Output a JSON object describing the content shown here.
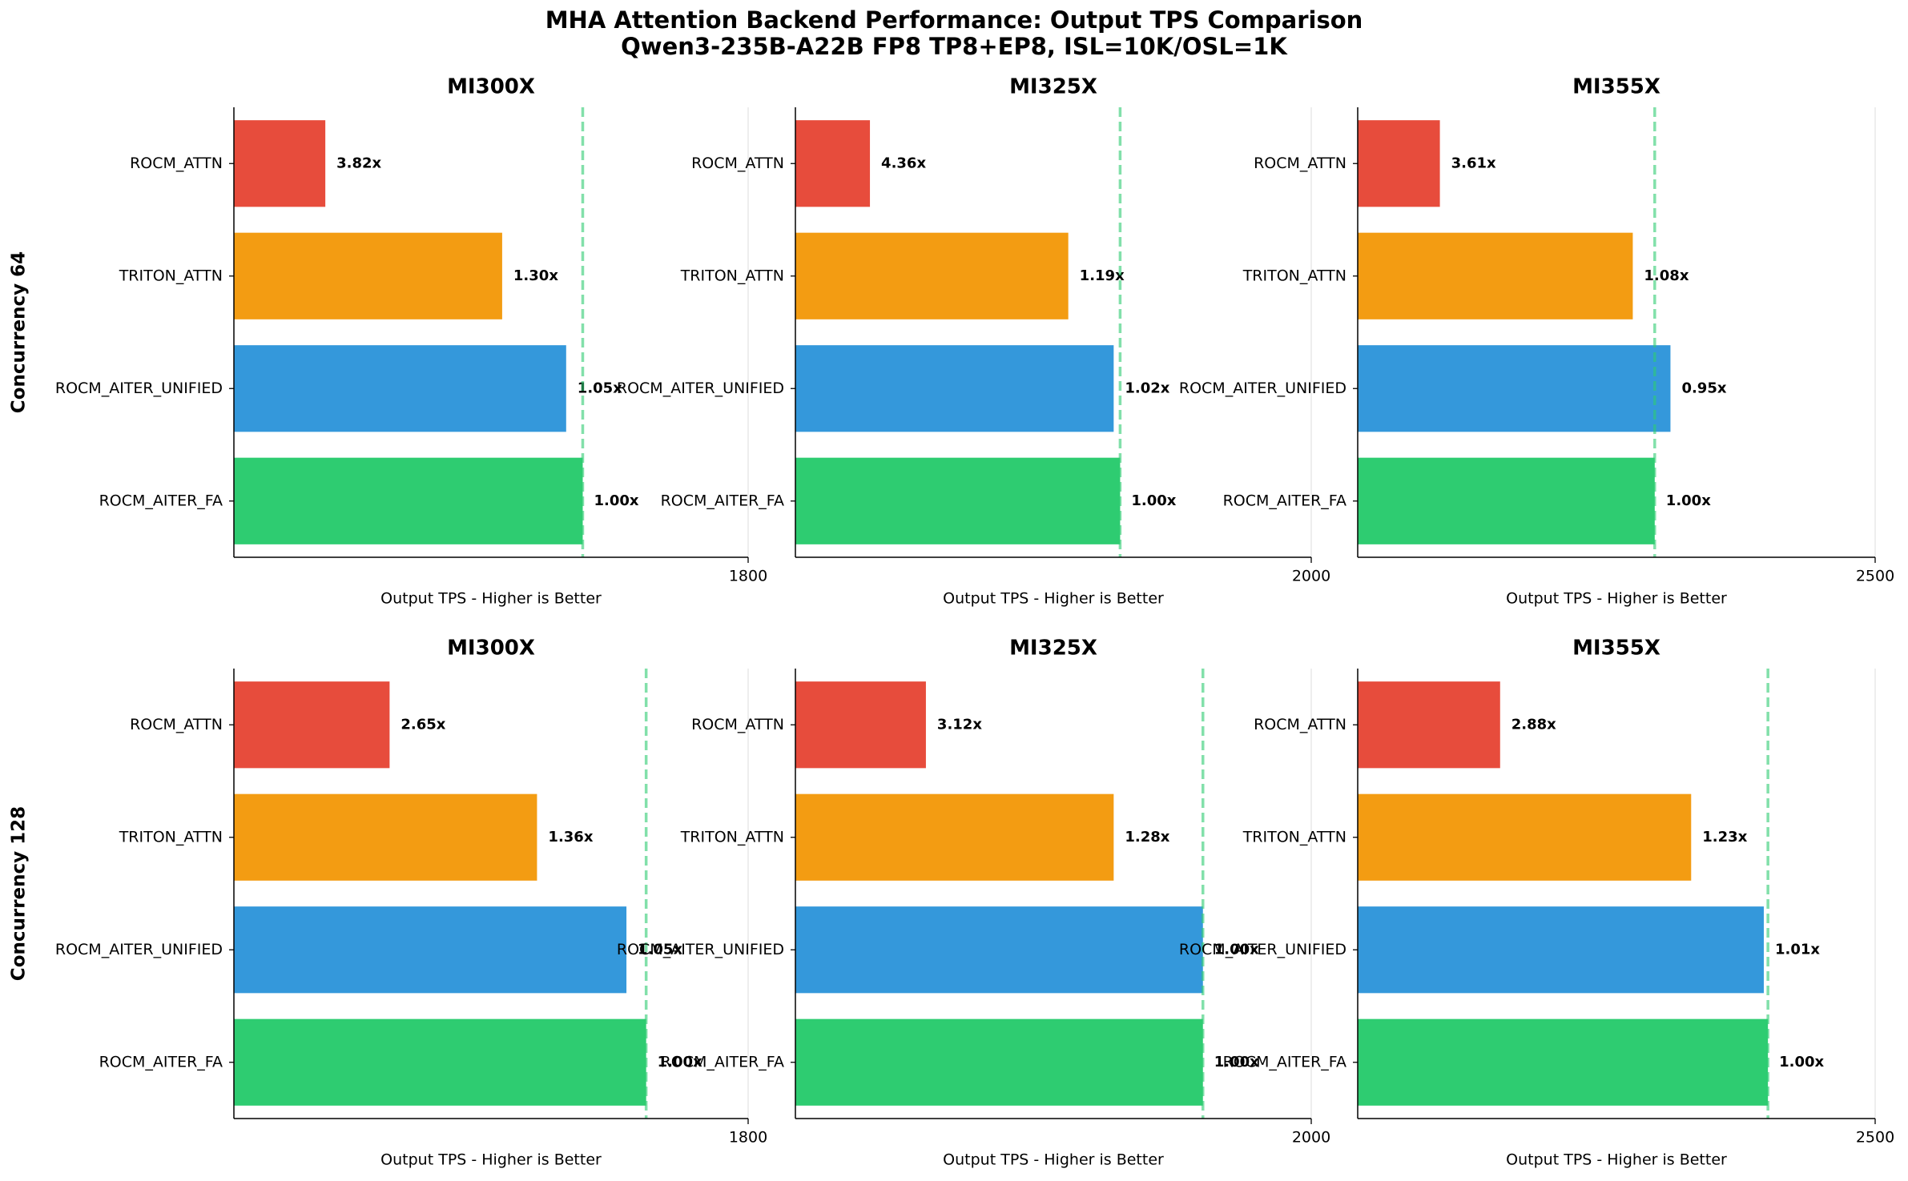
{
  "title": "MHA Attention Backend Performance: Output TPS Comparison",
  "subtitle": "Qwen3-235B-A22B FP8 TP8+EP8, ISL=10K/OSL=1K",
  "chart_data": [
    {
      "type": "bar",
      "horizontal": true,
      "title": "MI300X",
      "ylabel": "Concurrency 64",
      "xlabel": "Output TPS - Higher is Better",
      "categories": [
        "ROCM_ATTN",
        "TRITON_ATTN",
        "ROCM_AITER_UNIFIED",
        "ROCM_AITER_FA"
      ],
      "values": [
        320,
        939,
        1163,
        1221
      ],
      "annotations": [
        "3.82x",
        "1.30x",
        "1.05x",
        "1.00x"
      ],
      "colors": [
        "#e74c3c",
        "#f39c12",
        "#3498db",
        "#2ecc71"
      ],
      "reference_color": "#2ecc71",
      "xlim": [
        0,
        1800
      ],
      "xticks": [
        1800
      ],
      "grid": true
    },
    {
      "type": "bar",
      "horizontal": true,
      "title": "MI325X",
      "xlabel": "Output TPS - Higher is Better",
      "categories": [
        "ROCM_ATTN",
        "TRITON_ATTN",
        "ROCM_AITER_UNIFIED",
        "ROCM_AITER_FA"
      ],
      "values": [
        289,
        1058,
        1234,
        1259
      ],
      "annotations": [
        "4.36x",
        "1.19x",
        "1.02x",
        "1.00x"
      ],
      "colors": [
        "#e74c3c",
        "#f39c12",
        "#3498db",
        "#2ecc71"
      ],
      "reference_color": "#2ecc71",
      "xlim": [
        0,
        2000
      ],
      "xticks": [
        2000
      ],
      "grid": true
    },
    {
      "type": "bar",
      "horizontal": true,
      "title": "MI355X",
      "xlabel": "Output TPS - Higher is Better",
      "categories": [
        "ROCM_ATTN",
        "TRITON_ATTN",
        "ROCM_AITER_UNIFIED",
        "ROCM_AITER_FA"
      ],
      "values": [
        397,
        1329,
        1511,
        1435
      ],
      "annotations": [
        "3.61x",
        "1.08x",
        "0.95x",
        "1.00x"
      ],
      "colors": [
        "#e74c3c",
        "#f39c12",
        "#3498db",
        "#2ecc71"
      ],
      "reference_color": "#2ecc71",
      "xlim": [
        0,
        2500
      ],
      "xticks": [
        2500
      ],
      "grid": true
    },
    {
      "type": "bar",
      "horizontal": true,
      "title": "MI300X",
      "ylabel": "Concurrency 128",
      "xlabel": "Output TPS - Higher is Better",
      "categories": [
        "ROCM_ATTN",
        "TRITON_ATTN",
        "ROCM_AITER_UNIFIED",
        "ROCM_AITER_FA"
      ],
      "values": [
        545,
        1061,
        1374,
        1443
      ],
      "annotations": [
        "2.65x",
        "1.36x",
        "1.05x",
        "1.00x"
      ],
      "colors": [
        "#e74c3c",
        "#f39c12",
        "#3498db",
        "#2ecc71"
      ],
      "reference_color": "#2ecc71",
      "xlim": [
        0,
        1800
      ],
      "xticks": [
        1800
      ],
      "grid": true
    },
    {
      "type": "bar",
      "horizontal": true,
      "title": "MI325X",
      "xlabel": "Output TPS - Higher is Better",
      "categories": [
        "ROCM_ATTN",
        "TRITON_ATTN",
        "ROCM_AITER_UNIFIED",
        "ROCM_AITER_FA"
      ],
      "values": [
        506,
        1234,
        1580,
        1580
      ],
      "annotations": [
        "3.12x",
        "1.28x",
        "1.00x",
        "1.00x"
      ],
      "colors": [
        "#e74c3c",
        "#f39c12",
        "#3498db",
        "#2ecc71"
      ],
      "reference_color": "#2ecc71",
      "xlim": [
        0,
        2000
      ],
      "xticks": [
        2000
      ],
      "grid": true
    },
    {
      "type": "bar",
      "horizontal": true,
      "title": "MI355X",
      "xlabel": "Output TPS - Higher is Better",
      "categories": [
        "ROCM_ATTN",
        "TRITON_ATTN",
        "ROCM_AITER_UNIFIED",
        "ROCM_AITER_FA"
      ],
      "values": [
        688,
        1611,
        1962,
        1982
      ],
      "annotations": [
        "2.88x",
        "1.23x",
        "1.01x",
        "1.00x"
      ],
      "colors": [
        "#e74c3c",
        "#f39c12",
        "#3498db",
        "#2ecc71"
      ],
      "reference_color": "#2ecc71",
      "xlim": [
        0,
        2500
      ],
      "xticks": [
        2500
      ],
      "grid": true
    }
  ]
}
